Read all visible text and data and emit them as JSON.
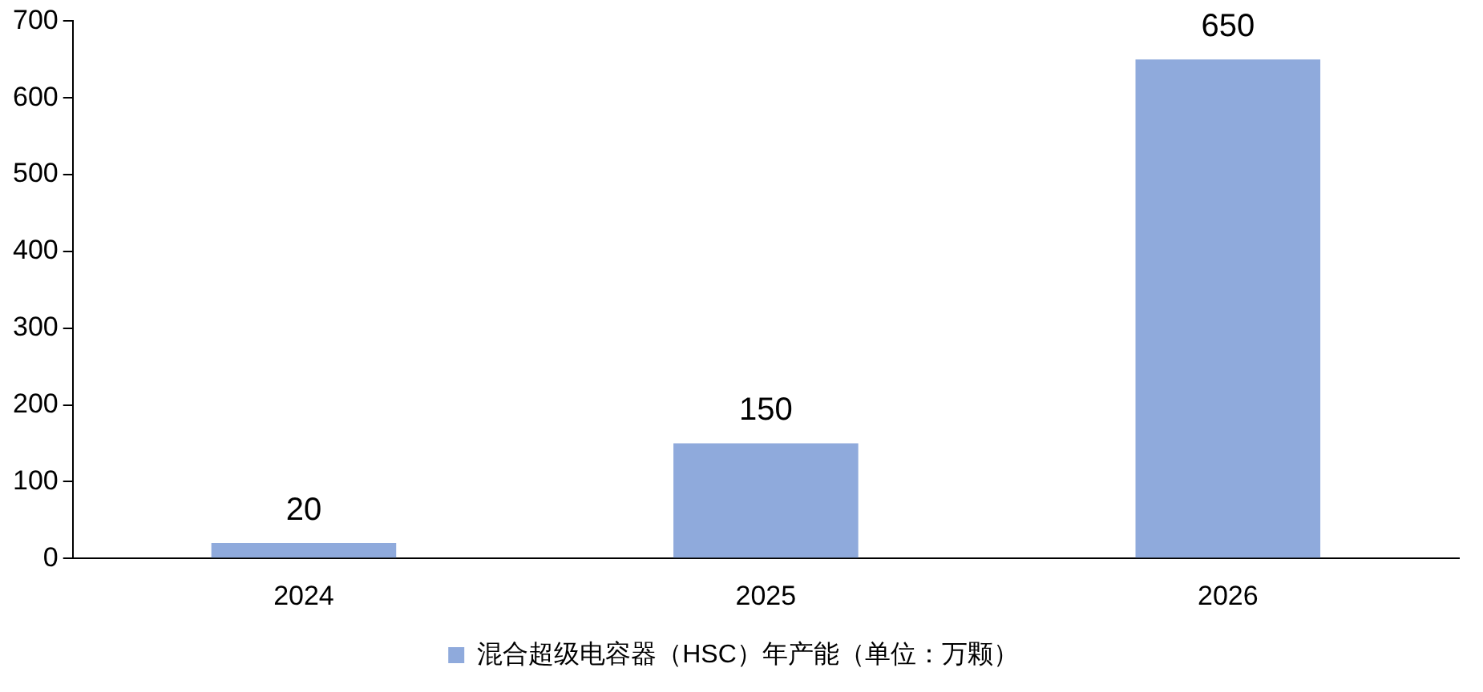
{
  "chart_data": {
    "type": "bar",
    "categories": [
      "2024",
      "2025",
      "2026"
    ],
    "series": [
      {
        "name": "混合超级电容器（HSC）年产能（单位：万颗）",
        "color": "#8faadc",
        "values": [
          20,
          150,
          650
        ]
      }
    ],
    "ylim": [
      0,
      700
    ],
    "yticks": [
      0,
      100,
      200,
      300,
      400,
      500,
      600,
      700
    ],
    "grid": false,
    "legend": "bottom",
    "data_labels": true
  }
}
